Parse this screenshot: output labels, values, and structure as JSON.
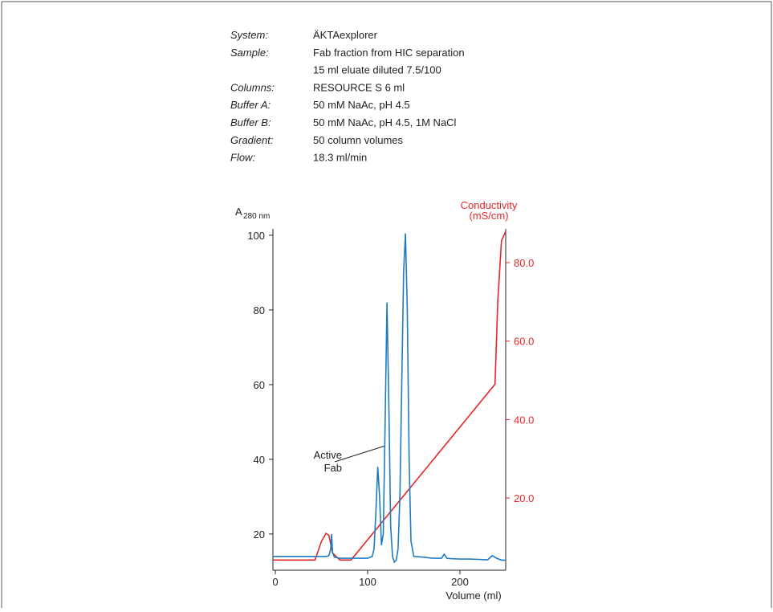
{
  "info": [
    {
      "label": "System:",
      "lines": [
        "ÄKTAexplorer"
      ]
    },
    {
      "label": "Sample:",
      "lines": [
        "Fab fraction from HIC separation",
        "15 ml eluate diluted 7.5/100"
      ]
    },
    {
      "label": "Columns:",
      "lines": [
        "RESOURCE S 6 ml"
      ]
    },
    {
      "label": "Buffer A:",
      "lines": [
        "50 mM NaAc, pH 4.5"
      ]
    },
    {
      "label": "Buffer B:",
      "lines": [
        "50 mM NaAc, pH 4.5, 1M NaCl"
      ]
    },
    {
      "label": "Gradient:",
      "lines": [
        "50 column volumes"
      ]
    },
    {
      "label": "Flow:",
      "lines": [
        "18.3 ml/min"
      ]
    }
  ],
  "chart_data": {
    "type": "line",
    "y_label": "A",
    "y_label_sub": "280 nm",
    "y2_label": [
      "Conductivity",
      "(mS/cm)"
    ],
    "x_label": "Volume (ml)",
    "annotation": [
      "Active",
      "Fab"
    ],
    "xlim": [
      -2.6,
      249.6
    ],
    "xticks": [
      0,
      100,
      200
    ],
    "ylim": [
      10.3,
      101.7
    ],
    "yticks": [
      20,
      40,
      60,
      80,
      100
    ],
    "y2lim": [
      1.6,
      88.6
    ],
    "y2ticks": [
      {
        "value": 20,
        "label": "20.0"
      },
      {
        "value": 40,
        "label": "40.0"
      },
      {
        "value": 60,
        "label": "60.0"
      },
      {
        "value": 80,
        "label": "80.0"
      }
    ],
    "y2color": "#e8262a",
    "series": [
      {
        "color": "#1f7bc1",
        "x": [
          -2.6,
          0,
          40,
          55,
          58,
          60,
          61,
          62,
          64,
          70,
          90,
          100,
          105,
          107,
          109,
          111,
          113,
          115,
          117,
          119,
          121,
          123,
          125,
          127,
          129,
          131,
          133,
          135,
          137,
          139,
          141,
          143,
          145,
          147,
          150,
          160,
          170,
          180,
          183,
          186,
          190,
          200,
          210,
          220,
          230,
          235,
          240,
          245,
          249.6
        ],
        "values": [
          14,
          14,
          14,
          14,
          14.2,
          16,
          20,
          15,
          13.8,
          13.5,
          13.5,
          13.5,
          14,
          16,
          26,
          38,
          30,
          17,
          20,
          50,
          82,
          55,
          22,
          14,
          12.5,
          13,
          16,
          30,
          60,
          90,
          100.5,
          80,
          40,
          18,
          14,
          13.8,
          13.5,
          13.5,
          14.6,
          13.5,
          13.4,
          13.3,
          13.3,
          13.2,
          13.1,
          14.2,
          13.5,
          13,
          13
        ]
      },
      {
        "color": "#e8262a",
        "axis": "y2",
        "x": [
          -2.6,
          43,
          50,
          55,
          58,
          62,
          70,
          82,
          238,
          241,
          245,
          249.6
        ],
        "values": [
          4.2,
          4.2,
          9,
          11,
          10.5,
          6,
          4.2,
          4.2,
          49,
          70,
          85.5,
          88
        ]
      }
    ]
  }
}
